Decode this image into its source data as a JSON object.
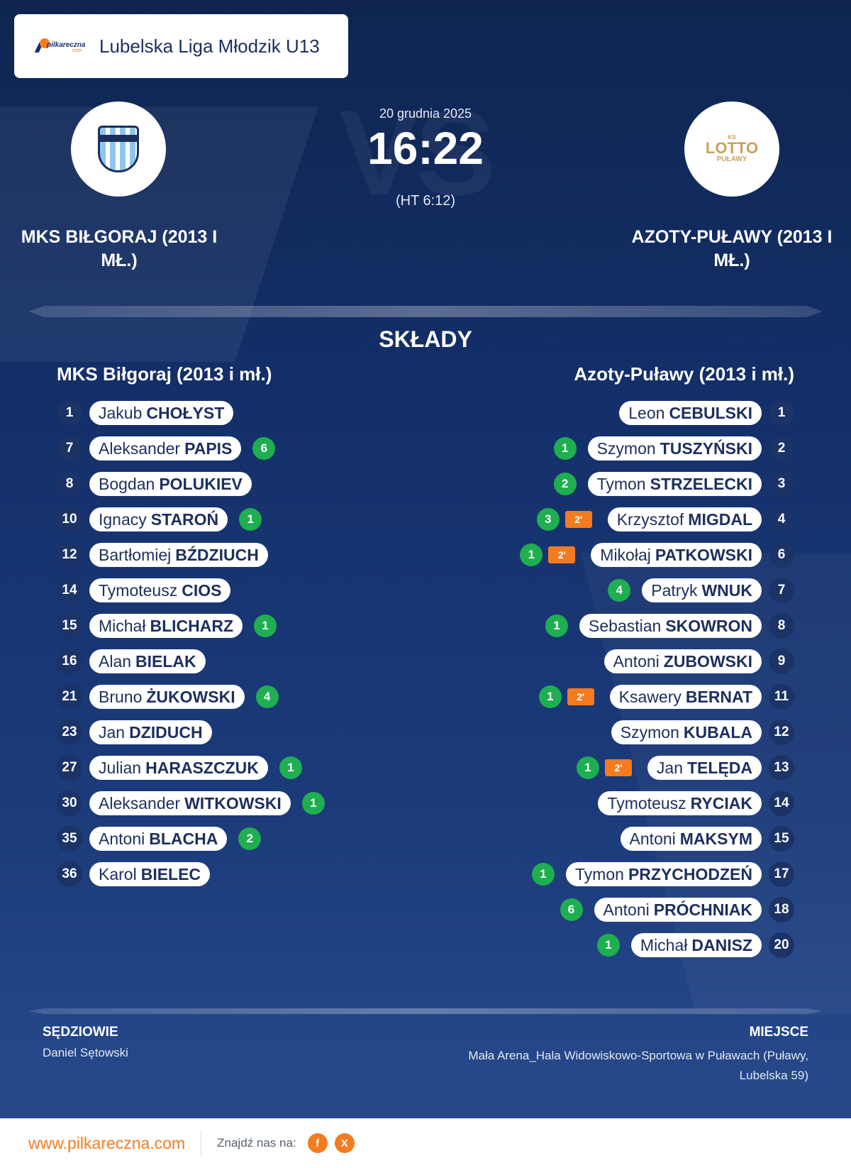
{
  "league": {
    "logo_text": "pilkareczna",
    "logo_suffix": ".com",
    "name": "Lubelska Liga Młodzik U13"
  },
  "match": {
    "date": "20 grudnia 2025",
    "score": "16:22",
    "halftime": "(HT 6:12)",
    "vs_watermark": "VS"
  },
  "home": {
    "title": "MKS BIŁGORAJ (2013 I MŁ.)",
    "name": "MKS Biłgoraj (2013 i mł.)",
    "players": [
      {
        "number": "1",
        "first": "Jakub",
        "last": "CHOŁYST",
        "goals": "",
        "suspension": ""
      },
      {
        "number": "7",
        "first": "Aleksander",
        "last": "PAPIS",
        "goals": "6",
        "suspension": ""
      },
      {
        "number": "8",
        "first": "Bogdan",
        "last": "POLUKIEV",
        "goals": "",
        "suspension": ""
      },
      {
        "number": "10",
        "first": "Ignacy",
        "last": "STAROŃ",
        "goals": "1",
        "suspension": ""
      },
      {
        "number": "12",
        "first": "Bartłomiej",
        "last": "BŹDZIUCH",
        "goals": "",
        "suspension": ""
      },
      {
        "number": "14",
        "first": "Tymoteusz",
        "last": "CIOS",
        "goals": "",
        "suspension": ""
      },
      {
        "number": "15",
        "first": "Michał",
        "last": "BLICHARZ",
        "goals": "1",
        "suspension": ""
      },
      {
        "number": "16",
        "first": "Alan",
        "last": "BIELAK",
        "goals": "",
        "suspension": ""
      },
      {
        "number": "21",
        "first": "Bruno",
        "last": "ŻUKOWSKI",
        "goals": "4",
        "suspension": ""
      },
      {
        "number": "23",
        "first": "Jan",
        "last": "DZIDUCH",
        "goals": "",
        "suspension": ""
      },
      {
        "number": "27",
        "first": "Julian",
        "last": "HARASZCZUK",
        "goals": "1",
        "suspension": ""
      },
      {
        "number": "30",
        "first": "Aleksander",
        "last": "WITKOWSKI",
        "goals": "1",
        "suspension": ""
      },
      {
        "number": "35",
        "first": "Antoni",
        "last": "BLACHA",
        "goals": "2",
        "suspension": ""
      },
      {
        "number": "36",
        "first": "Karol",
        "last": "BIELEC",
        "goals": "",
        "suspension": ""
      }
    ]
  },
  "away": {
    "title": "AZOTY-PUŁAWY (2013 I MŁ.)",
    "name": "Azoty-Puławy (2013 i mł.)",
    "logo_text": {
      "top": "KS",
      "main": "LOTTO",
      "bottom": "PUŁAWY"
    },
    "players": [
      {
        "number": "1",
        "first": "Leon",
        "last": "CEBULSKI",
        "goals": "",
        "suspension": ""
      },
      {
        "number": "2",
        "first": "Szymon",
        "last": "TUSZYŃSKI",
        "goals": "1",
        "suspension": ""
      },
      {
        "number": "3",
        "first": "Tymon",
        "last": "STRZELECKI",
        "goals": "2",
        "suspension": ""
      },
      {
        "number": "4",
        "first": "Krzysztof",
        "last": "MIGDAL",
        "goals": "3",
        "suspension": "2'"
      },
      {
        "number": "6",
        "first": "Mikołaj",
        "last": "PATKOWSKI",
        "goals": "1",
        "suspension": "2'"
      },
      {
        "number": "7",
        "first": "Patryk",
        "last": "WNUK",
        "goals": "4",
        "suspension": ""
      },
      {
        "number": "8",
        "first": "Sebastian",
        "last": "SKOWRON",
        "goals": "1",
        "suspension": ""
      },
      {
        "number": "9",
        "first": "Antoni",
        "last": "ZUBOWSKI",
        "goals": "",
        "suspension": ""
      },
      {
        "number": "11",
        "first": "Ksawery",
        "last": "BERNAT",
        "goals": "1",
        "suspension": "2'"
      },
      {
        "number": "12",
        "first": "Szymon",
        "last": "KUBALA",
        "goals": "",
        "suspension": ""
      },
      {
        "number": "13",
        "first": "Jan",
        "last": "TELĘDA",
        "goals": "1",
        "suspension": "2'"
      },
      {
        "number": "14",
        "first": "Tymoteusz",
        "last": "RYCIAK",
        "goals": "",
        "suspension": ""
      },
      {
        "number": "15",
        "first": "Antoni",
        "last": "MAKSYM",
        "goals": "",
        "suspension": ""
      },
      {
        "number": "17",
        "first": "Tymon",
        "last": "PRZYCHODZEŃ",
        "goals": "1",
        "suspension": ""
      },
      {
        "number": "18",
        "first": "Antoni",
        "last": "PRÓCHNIAK",
        "goals": "6",
        "suspension": ""
      },
      {
        "number": "20",
        "first": "Michał",
        "last": "DANISZ",
        "goals": "1",
        "suspension": ""
      }
    ]
  },
  "sections": {
    "lineups": "SKŁADY"
  },
  "referees": {
    "label": "SĘDZIOWIE",
    "names": "Daniel Sętowski"
  },
  "venue": {
    "label": "MIEJSCE",
    "name": "Mała Arena_Hala Widowiskowo-Sportowa w Puławach (Puławy, Lubelska 59)"
  },
  "footer": {
    "site": "www.pilkareczna.com",
    "find_us": "Znajdź nas na:",
    "social": [
      "f",
      "X"
    ]
  },
  "colors": {
    "goal": "#1fae50",
    "suspension": "#f47b20",
    "accent": "#f47b20",
    "navy": "#14306a"
  }
}
